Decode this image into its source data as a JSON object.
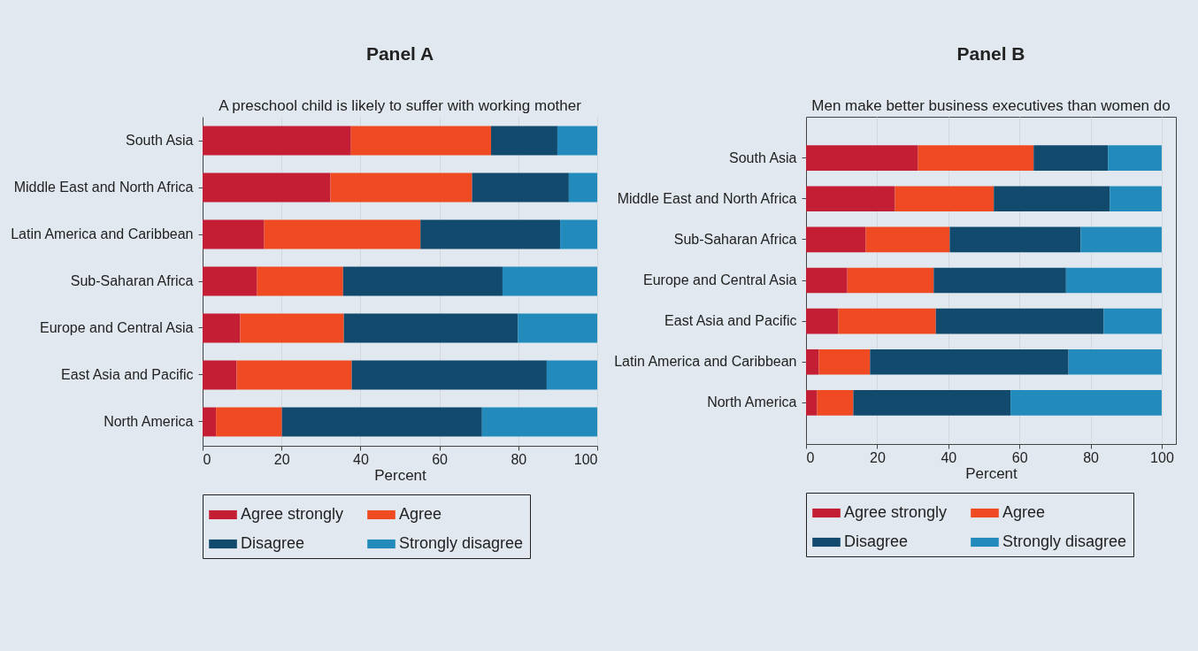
{
  "chart_data": [
    {
      "type": "bar",
      "title": "Panel A",
      "subtitle": "A preschool child is likely to suffer with working mother",
      "xlabel": "Percent",
      "orientation": "horizontal",
      "stacked": true,
      "legend": "bottom",
      "grid": "x",
      "xlim": [
        0,
        100
      ],
      "xticks": [
        0,
        20,
        40,
        60,
        80,
        100
      ],
      "categories": [
        "South Asia",
        "Middle East and North Africa",
        "Latin America and Caribbean",
        "Sub-Saharan Africa",
        "Europe and Central Asia",
        "East Asia and Pacific",
        "North America"
      ],
      "series": [
        {
          "name": "Agree strongly",
          "color": "#c41e35",
          "values": [
            37.6,
            32.4,
            15.6,
            13.8,
            9.5,
            8.6,
            3.4
          ]
        },
        {
          "name": "Agree",
          "color": "#f04a23",
          "values": [
            35.5,
            35.9,
            39.6,
            21.8,
            26.3,
            29.2,
            16.7
          ]
        },
        {
          "name": "Disagree",
          "color": "#124a6e",
          "values": [
            16.8,
            24.5,
            35.4,
            40.4,
            44.1,
            49.4,
            50.7
          ]
        },
        {
          "name": "Strongly disagree",
          "color": "#228bbb",
          "values": [
            10.1,
            7.2,
            9.4,
            24.0,
            20.1,
            12.8,
            29.2
          ]
        }
      ]
    },
    {
      "type": "bar",
      "title": "Panel B",
      "subtitle": "Men make better business executives than women do",
      "xlabel": "Percent",
      "orientation": "horizontal",
      "stacked": true,
      "legend": "bottom",
      "grid": "x",
      "xlim": [
        0,
        104
      ],
      "xticks": [
        0,
        20,
        40,
        60,
        80,
        100
      ],
      "categories": [
        "South Asia",
        "Middle East and North Africa",
        "Sub-Saharan Africa",
        "Europe and Central Asia",
        "East Asia and Pacific",
        "Latin America and Caribbean",
        "North America"
      ],
      "series": [
        {
          "name": "Agree strongly",
          "color": "#c41e35",
          "values": [
            31.5,
            25.0,
            16.8,
            11.6,
            9.1,
            3.6,
            3.1
          ]
        },
        {
          "name": "Agree",
          "color": "#f04a23",
          "values": [
            32.5,
            27.8,
            23.6,
            24.3,
            27.4,
            14.4,
            10.2
          ]
        },
        {
          "name": "Disagree",
          "color": "#124a6e",
          "values": [
            20.9,
            32.6,
            36.8,
            37.2,
            47.2,
            55.8,
            44.2
          ]
        },
        {
          "name": "Strongly disagree",
          "color": "#228bbb",
          "values": [
            15.1,
            14.6,
            22.8,
            26.9,
            16.3,
            26.2,
            42.5
          ]
        }
      ]
    }
  ]
}
